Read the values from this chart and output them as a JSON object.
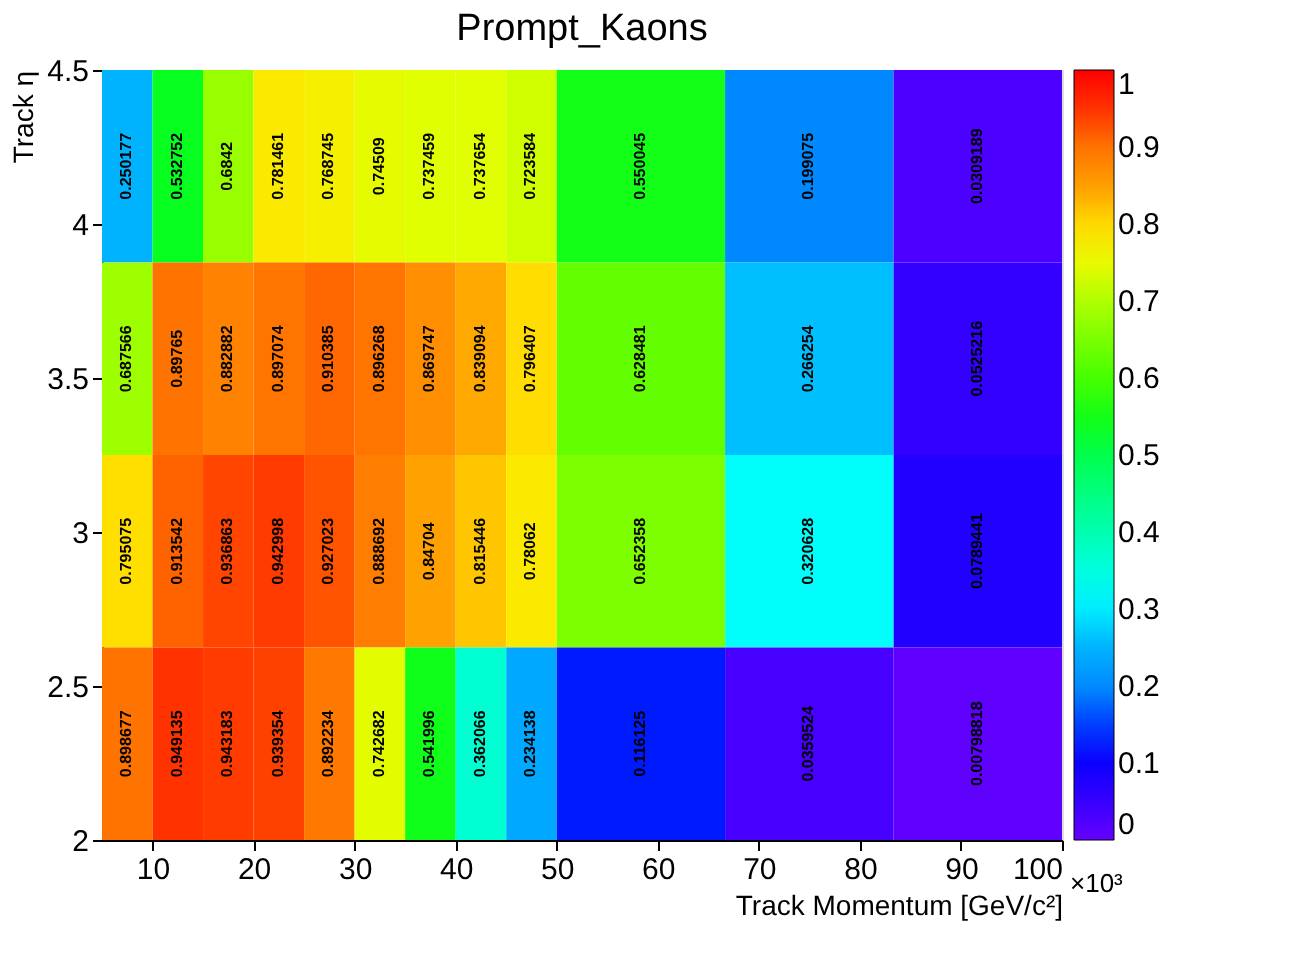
{
  "chart_data": {
    "type": "heatmap",
    "title": "Prompt_Kaons",
    "xlabel": "Track Momentum [GeV/c²]",
    "ylabel": "Track η",
    "annotations": [
      "×10³"
    ],
    "x": [
      7.5,
      12.5,
      17.5,
      22.5,
      27.5,
      32.5,
      37.5,
      42.5,
      47.5,
      58.33,
      75,
      91.67
    ],
    "cells": [
      [
        0.250177,
        0.532752,
        0.6842,
        0.781461,
        0.768745,
        0.74509,
        0.737459,
        0.737654,
        0.723584,
        0.550045,
        0.199075,
        0.0309189
      ],
      [
        0.687566,
        0.89765,
        0.882882,
        0.897074,
        0.910385,
        0.896268,
        0.869747,
        0.839094,
        0.796407,
        0.628481,
        0.266254,
        0.0525216
      ],
      [
        0.795075,
        0.913542,
        0.936863,
        0.942998,
        0.927023,
        0.888692,
        0.84704,
        0.815446,
        0.78062,
        0.652358,
        0.320628,
        0.0789441
      ],
      [
        0.898677,
        0.949135,
        0.943183,
        0.939354,
        0.892234,
        0.742682,
        0.541996,
        0.362066,
        0.234138,
        0.116125,
        0.0359524,
        0.00798818
      ]
    ],
    "data_labels": true,
    "xlim": [
      5,
      100
    ],
    "xticks": [
      10,
      20,
      30,
      40,
      50,
      60,
      70,
      80,
      90,
      100
    ],
    "ylim": [
      2,
      4.5
    ],
    "yticks": [
      2,
      2.5,
      3,
      3.5,
      4,
      4.5
    ],
    "clim": [
      0,
      1
    ],
    "cticks": [
      0,
      0.1,
      0.2,
      0.3,
      0.4,
      0.5,
      0.6,
      0.7,
      0.8,
      0.9,
      1
    ],
    "colors": [
      "#6600ff",
      "#3300ff",
      "#0000ff",
      "#0044ff",
      "#0099ff",
      "#00bbff",
      "#00ffff",
      "#00ffcc",
      "#00ff99",
      "#00ff66",
      "#00ff22",
      "#22ff00",
      "#66ff00",
      "#99ff00",
      "#e0ff00",
      "#ffe600",
      "#ffa500",
      "#ff7700",
      "#ff3300",
      "#ff0000"
    ]
  }
}
